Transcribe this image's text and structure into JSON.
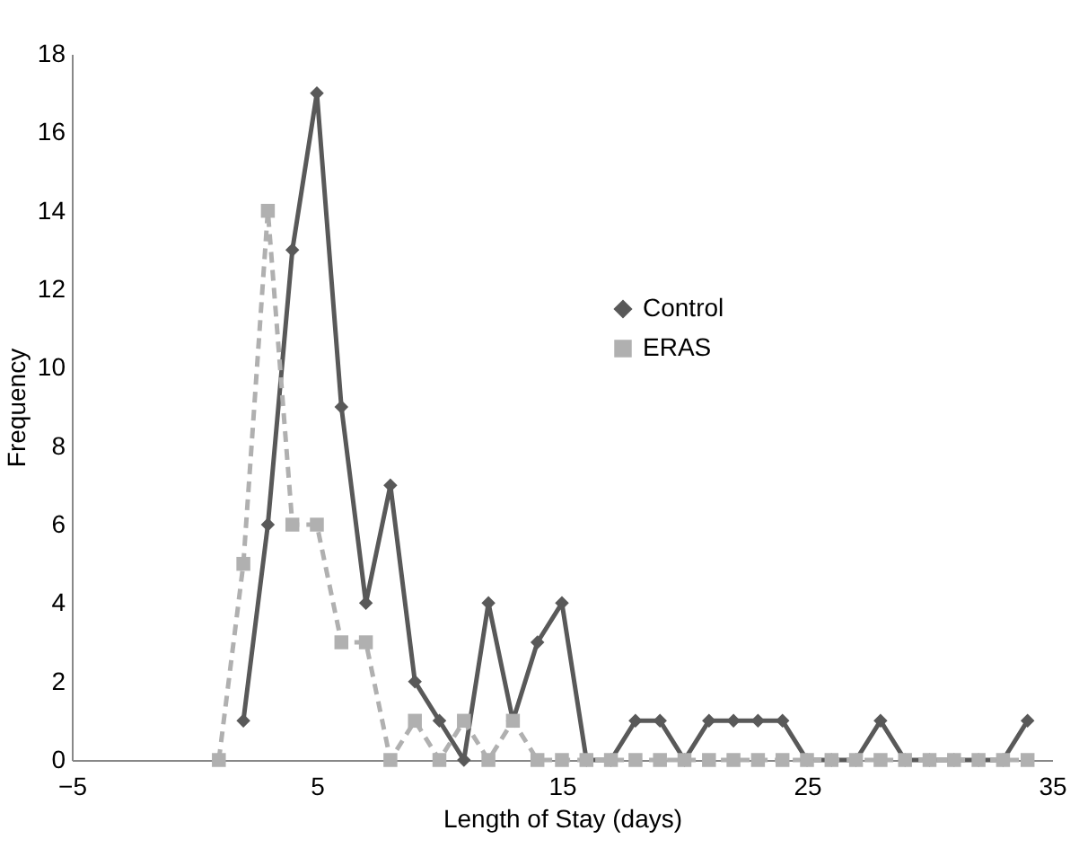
{
  "chart_data": {
    "type": "line",
    "xlabel": "Length of Stay (days)",
    "ylabel": "Frequency",
    "xlim": [
      -5,
      35
    ],
    "xticks": [
      -5,
      5,
      15,
      25,
      35
    ],
    "ylim": [
      0,
      18
    ],
    "yticks": [
      0,
      2,
      4,
      6,
      8,
      10,
      12,
      14,
      16,
      18
    ],
    "legend": "right",
    "grid": false,
    "series": [
      {
        "name": "Control",
        "color": "#595959",
        "marker": "diamond",
        "line_style": "solid",
        "x": [
          2,
          3,
          4,
          5,
          6,
          7,
          8,
          9,
          10,
          11,
          12,
          13,
          14,
          15,
          16,
          17,
          18,
          19,
          20,
          21,
          22,
          23,
          24,
          25,
          26,
          27,
          28,
          29,
          30,
          31,
          32,
          33,
          34
        ],
        "values": [
          1,
          6,
          13,
          17,
          9,
          4,
          7,
          2,
          1,
          0,
          4,
          1,
          3,
          4,
          0,
          0,
          1,
          1,
          0,
          1,
          1,
          1,
          1,
          0,
          0,
          0,
          1,
          0,
          0,
          0,
          0,
          0,
          1
        ]
      },
      {
        "name": "ERAS",
        "color": "#b0b0b0",
        "marker": "square",
        "line_style": "dashed",
        "x": [
          1,
          2,
          3,
          4,
          5,
          6,
          7,
          8,
          9,
          10,
          11,
          12,
          13,
          14,
          15,
          16,
          17,
          18,
          19,
          20,
          21,
          22,
          23,
          24,
          25,
          26,
          27,
          28,
          29,
          30,
          31,
          32,
          33,
          34
        ],
        "values": [
          0,
          5,
          14,
          6,
          6,
          3,
          3,
          0,
          1,
          0,
          1,
          0,
          1,
          0,
          0,
          0,
          0,
          0,
          0,
          0,
          0,
          0,
          0,
          0,
          0,
          0,
          0,
          0,
          0,
          0,
          0,
          0,
          0,
          0
        ]
      }
    ]
  }
}
